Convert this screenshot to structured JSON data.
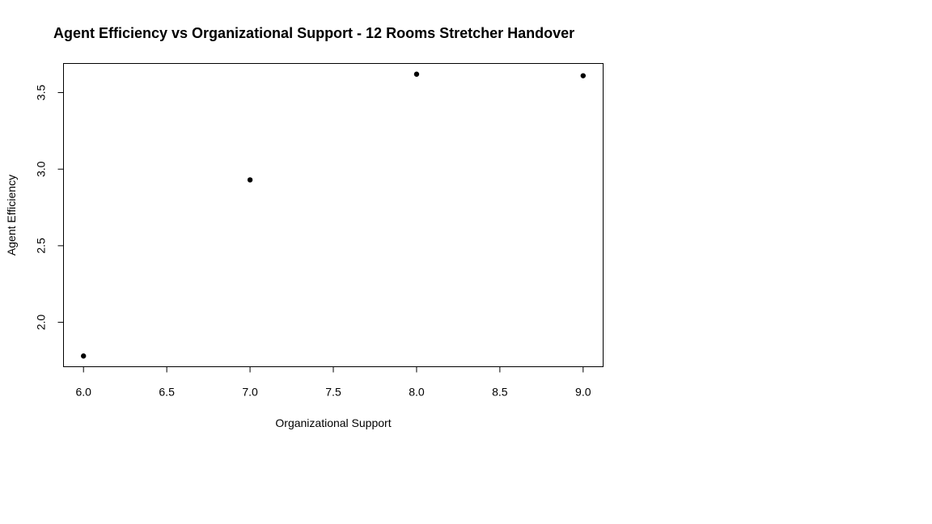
{
  "chart_data": {
    "type": "scatter",
    "title": "Agent Efficiency vs Organizational Support - 12 Rooms Stretcher Handover",
    "xlabel": "Organizational Support",
    "ylabel": "Agent Efficiency",
    "xlim": [
      5.88,
      9.12
    ],
    "ylim": [
      1.71,
      3.69
    ],
    "x_ticks": [
      6.0,
      6.5,
      7.0,
      7.5,
      8.0,
      8.5,
      9.0
    ],
    "x_tick_labels": [
      "6.0",
      "6.5",
      "7.0",
      "7.5",
      "8.0",
      "8.5",
      "9.0"
    ],
    "y_ticks": [
      2.0,
      2.5,
      3.0,
      3.5
    ],
    "y_tick_labels": [
      "2.0",
      "2.5",
      "3.0",
      "3.5"
    ],
    "grid": false,
    "legend": "none",
    "point_color": "#000000",
    "points": [
      {
        "x": 6.0,
        "y": 1.78
      },
      {
        "x": 7.0,
        "y": 2.93
      },
      {
        "x": 8.0,
        "y": 3.62
      },
      {
        "x": 9.0,
        "y": 3.61
      }
    ]
  }
}
